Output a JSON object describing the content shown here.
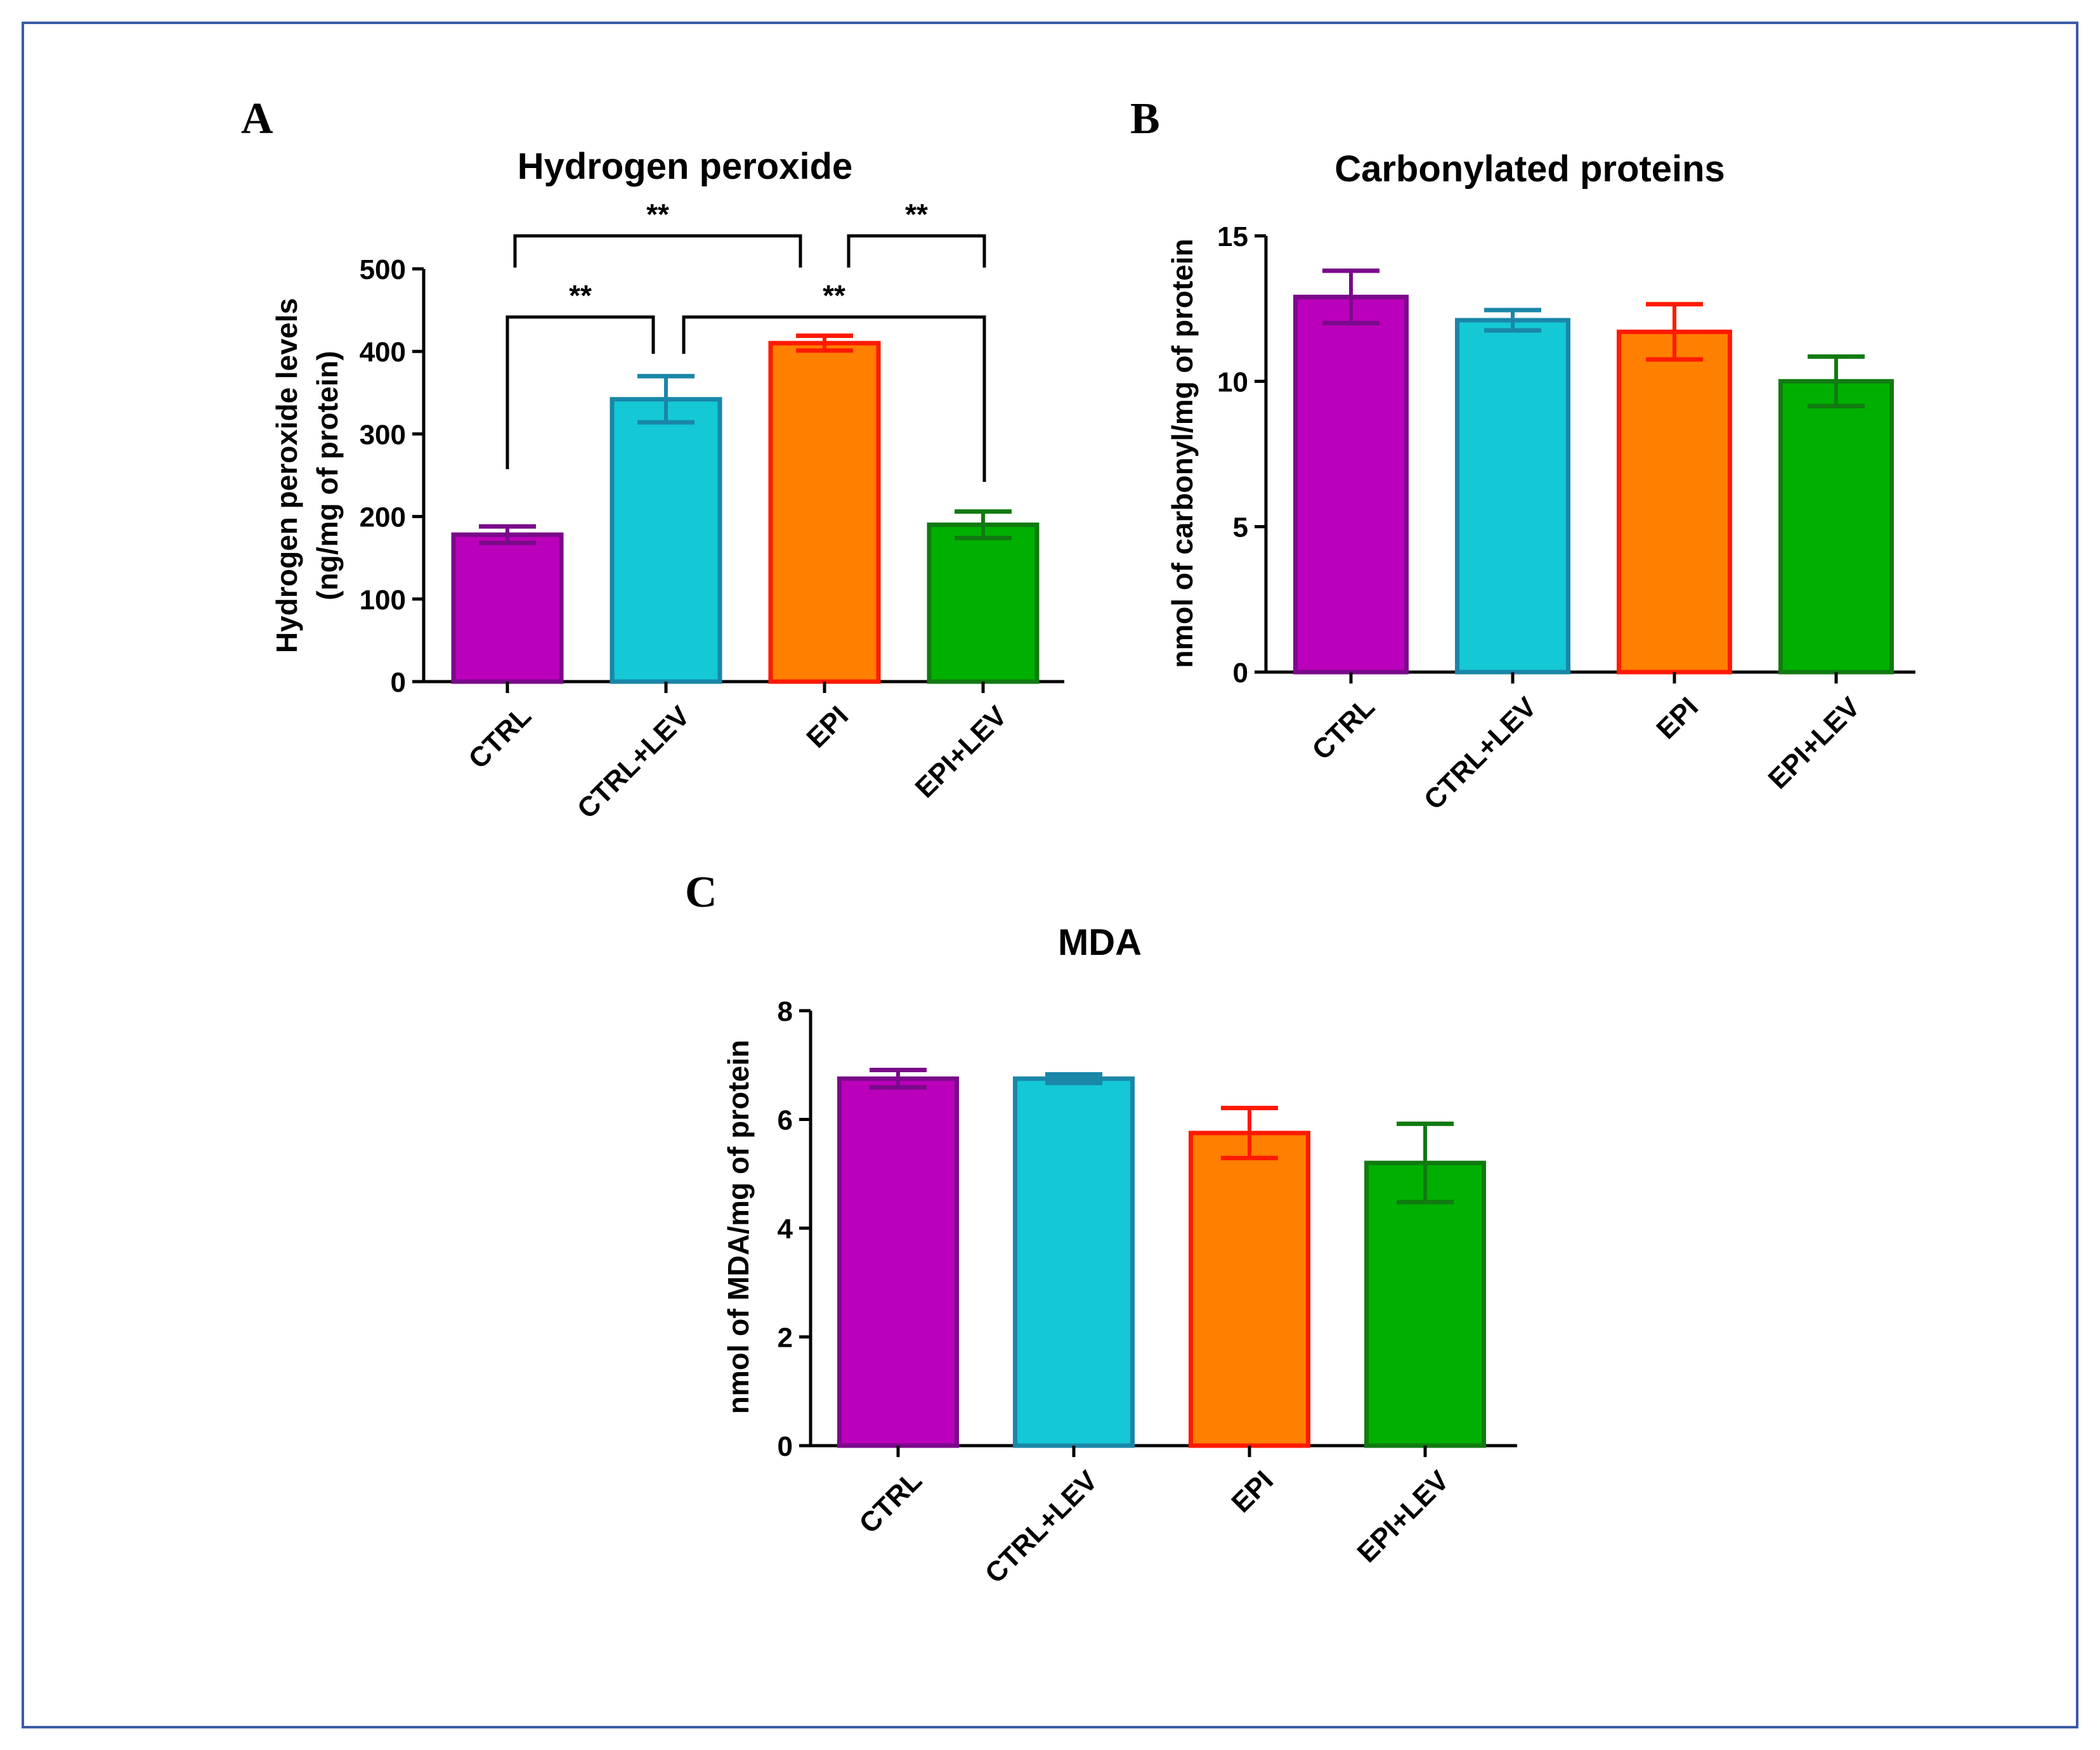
{
  "frame_color": "#3b5ba5",
  "chart_data": [
    {
      "panel": "A",
      "type": "bar",
      "title": "Hydrogen peroxide",
      "ylabel_line1": "Hydrogen peroxide levels",
      "ylabel_line2": "(ng/mg of protein)",
      "xlabel": "",
      "categories": [
        "CTRL",
        "CTRL+LEV",
        "EPI",
        "EPI+LEV"
      ],
      "values": [
        178,
        342,
        410,
        190
      ],
      "errors": [
        10,
        28,
        9,
        16
      ],
      "ylim": [
        0,
        500
      ],
      "yticks": [
        0,
        100,
        200,
        300,
        400,
        500
      ],
      "fill_colors": [
        "#bb00bb",
        "#14c8d6",
        "#ff7f00",
        "#00b000"
      ],
      "edge_colors": [
        "#7a0a8a",
        "#1a86a8",
        "#ff1a00",
        "#117a11"
      ],
      "significance": [
        {
          "from": 0,
          "to": 2,
          "label": "**",
          "level": 0
        },
        {
          "from": 2,
          "to": 3,
          "label": "**",
          "level": 0
        },
        {
          "from": 0,
          "to": 1,
          "label": "**",
          "level": 1
        },
        {
          "from": 1,
          "to": 3,
          "label": "**",
          "level": 1
        }
      ]
    },
    {
      "panel": "B",
      "type": "bar",
      "title": "Carbonylated proteins",
      "ylabel_line1": "nmol of carbonyl/mg of protein",
      "ylabel_line2": "",
      "xlabel": "",
      "categories": [
        "CTRL",
        "CTRL+LEV",
        "EPI",
        "EPI+LEV"
      ],
      "values": [
        12.9,
        12.1,
        11.7,
        10.0
      ],
      "errors": [
        0.9,
        0.35,
        0.95,
        0.85
      ],
      "ylim": [
        0,
        15
      ],
      "yticks": [
        0,
        5,
        10,
        15
      ],
      "fill_colors": [
        "#bb00bb",
        "#14c8d6",
        "#ff7f00",
        "#00b000"
      ],
      "edge_colors": [
        "#7a0a8a",
        "#1a86a8",
        "#ff1a00",
        "#117a11"
      ],
      "significance": []
    },
    {
      "panel": "C",
      "type": "bar",
      "title": "MDA",
      "ylabel_line1": "nmol of MDA/mg of protein",
      "ylabel_line2": "",
      "xlabel": "",
      "categories": [
        "CTRL",
        "CTRL+LEV",
        "EPI",
        "EPI+LEV"
      ],
      "values": [
        6.75,
        6.75,
        5.75,
        5.2
      ],
      "errors": [
        0.16,
        0.08,
        0.46,
        0.72
      ],
      "ylim": [
        0,
        8
      ],
      "yticks": [
        0,
        2,
        4,
        6,
        8
      ],
      "fill_colors": [
        "#bb00bb",
        "#14c8d6",
        "#ff7f00",
        "#00b000"
      ],
      "edge_colors": [
        "#7a0a8a",
        "#1a86a8",
        "#ff1a00",
        "#117a11"
      ],
      "significance": []
    }
  ]
}
